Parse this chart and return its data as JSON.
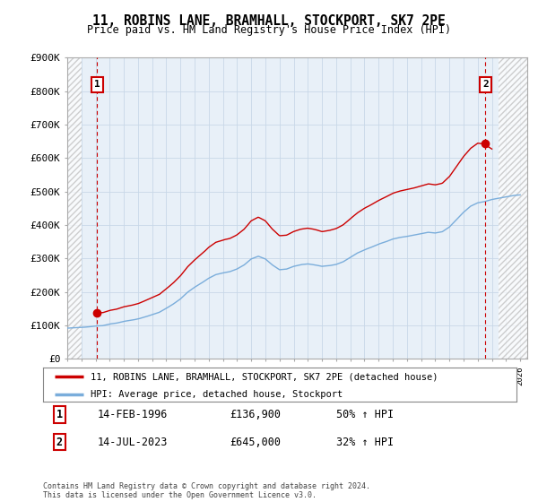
{
  "title": "11, ROBINS LANE, BRAMHALL, STOCKPORT, SK7 2PE",
  "subtitle": "Price paid vs. HM Land Registry's House Price Index (HPI)",
  "ylabel_ticks": [
    "£0",
    "£100K",
    "£200K",
    "£300K",
    "£400K",
    "£500K",
    "£600K",
    "£700K",
    "£800K",
    "£900K"
  ],
  "ytick_values": [
    0,
    100000,
    200000,
    300000,
    400000,
    500000,
    600000,
    700000,
    800000,
    900000
  ],
  "ylim": [
    0,
    900000
  ],
  "xlim_start": 1994.0,
  "xlim_end": 2026.5,
  "sale1_x": 1996.12,
  "sale1_y": 136900,
  "sale2_x": 2023.54,
  "sale2_y": 645000,
  "line_color_red": "#cc0000",
  "line_color_blue": "#7aaddb",
  "plot_bg": "#e8f0f8",
  "grid_color": "#c8d8e8",
  "legend_label1": "11, ROBINS LANE, BRAMHALL, STOCKPORT, SK7 2PE (detached house)",
  "legend_label2": "HPI: Average price, detached house, Stockport",
  "note1_date": "14-FEB-1996",
  "note1_price": "£136,900",
  "note1_hpi": "50% ↑ HPI",
  "note2_date": "14-JUL-2023",
  "note2_price": "£645,000",
  "note2_hpi": "32% ↑ HPI",
  "footer": "Contains HM Land Registry data © Crown copyright and database right 2024.\nThis data is licensed under the Open Government Licence v3.0."
}
